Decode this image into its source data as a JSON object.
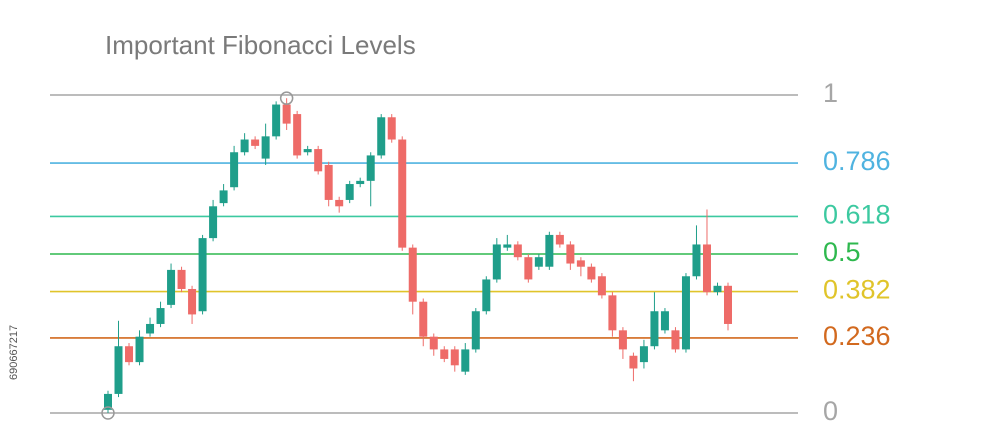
{
  "chart_data": {
    "type": "candlestick",
    "title": "Important Fibonacci Levels",
    "ylim": [
      0,
      1
    ],
    "yticks": [
      0,
      0.236,
      0.382,
      0.5,
      0.618,
      0.786,
      1
    ],
    "ytick_colors": [
      "#a6a6a6",
      "#d2691e",
      "#e0c42a",
      "#2eb84e",
      "#3cc9a0",
      "#4fb3e0",
      "#a6a6a6"
    ],
    "up_color": "#1f9e8a",
    "down_color": "#ee6b68",
    "open": [
      0.01,
      0.06,
      0.21,
      0.16,
      0.25,
      0.28,
      0.34,
      0.45,
      0.39,
      0.32,
      0.55,
      0.66,
      0.71,
      0.82,
      0.86,
      0.8,
      0.87,
      0.97,
      0.94,
      0.82,
      0.83,
      0.78,
      0.67,
      0.67,
      0.72,
      0.73,
      0.81,
      0.93,
      0.86,
      0.52,
      0.35,
      0.24,
      0.2,
      0.2,
      0.13,
      0.2,
      0.32,
      0.42,
      0.52,
      0.53,
      0.49,
      0.46,
      0.46,
      0.56,
      0.53,
      0.48,
      0.46,
      0.43,
      0.37,
      0.26,
      0.18,
      0.16,
      0.21,
      0.26,
      0.26,
      0.2,
      0.43,
      0.53,
      0.38,
      0.4
    ],
    "high": [
      0.07,
      0.29,
      0.22,
      0.26,
      0.3,
      0.35,
      0.47,
      0.46,
      0.4,
      0.56,
      0.67,
      0.72,
      0.84,
      0.88,
      0.87,
      0.91,
      0.98,
      0.99,
      0.95,
      0.84,
      0.84,
      0.79,
      0.68,
      0.73,
      0.74,
      0.82,
      0.94,
      0.94,
      0.87,
      0.53,
      0.36,
      0.25,
      0.21,
      0.21,
      0.22,
      0.33,
      0.43,
      0.55,
      0.56,
      0.54,
      0.5,
      0.5,
      0.57,
      0.57,
      0.54,
      0.49,
      0.47,
      0.44,
      0.38,
      0.27,
      0.19,
      0.23,
      0.38,
      0.33,
      0.27,
      0.44,
      0.59,
      0.64,
      0.41,
      0.41
    ],
    "low": [
      0,
      0.05,
      0.15,
      0.15,
      0.24,
      0.27,
      0.33,
      0.38,
      0.28,
      0.31,
      0.54,
      0.65,
      0.7,
      0.81,
      0.83,
      0.78,
      0.86,
      0.89,
      0.8,
      0.81,
      0.75,
      0.65,
      0.63,
      0.66,
      0.71,
      0.65,
      0.8,
      0.85,
      0.51,
      0.31,
      0.21,
      0.18,
      0.16,
      0.13,
      0.12,
      0.19,
      0.31,
      0.41,
      0.51,
      0.48,
      0.41,
      0.45,
      0.45,
      0.52,
      0.45,
      0.43,
      0.41,
      0.36,
      0.24,
      0.17,
      0.1,
      0.14,
      0.2,
      0.25,
      0.19,
      0.19,
      0.42,
      0.37,
      0.37,
      0.26
    ],
    "close": [
      0.06,
      0.21,
      0.16,
      0.24,
      0.28,
      0.33,
      0.45,
      0.39,
      0.31,
      0.55,
      0.65,
      0.7,
      0.82,
      0.86,
      0.84,
      0.87,
      0.97,
      0.91,
      0.81,
      0.83,
      0.76,
      0.67,
      0.65,
      0.72,
      0.73,
      0.81,
      0.93,
      0.86,
      0.52,
      0.35,
      0.24,
      0.2,
      0.17,
      0.15,
      0.2,
      0.32,
      0.42,
      0.53,
      0.53,
      0.49,
      0.42,
      0.49,
      0.56,
      0.53,
      0.47,
      0.46,
      0.42,
      0.37,
      0.26,
      0.2,
      0.14,
      0.21,
      0.32,
      0.32,
      0.2,
      0.43,
      0.53,
      0.38,
      0.4,
      0.28
    ]
  },
  "stock_id": "690667217"
}
